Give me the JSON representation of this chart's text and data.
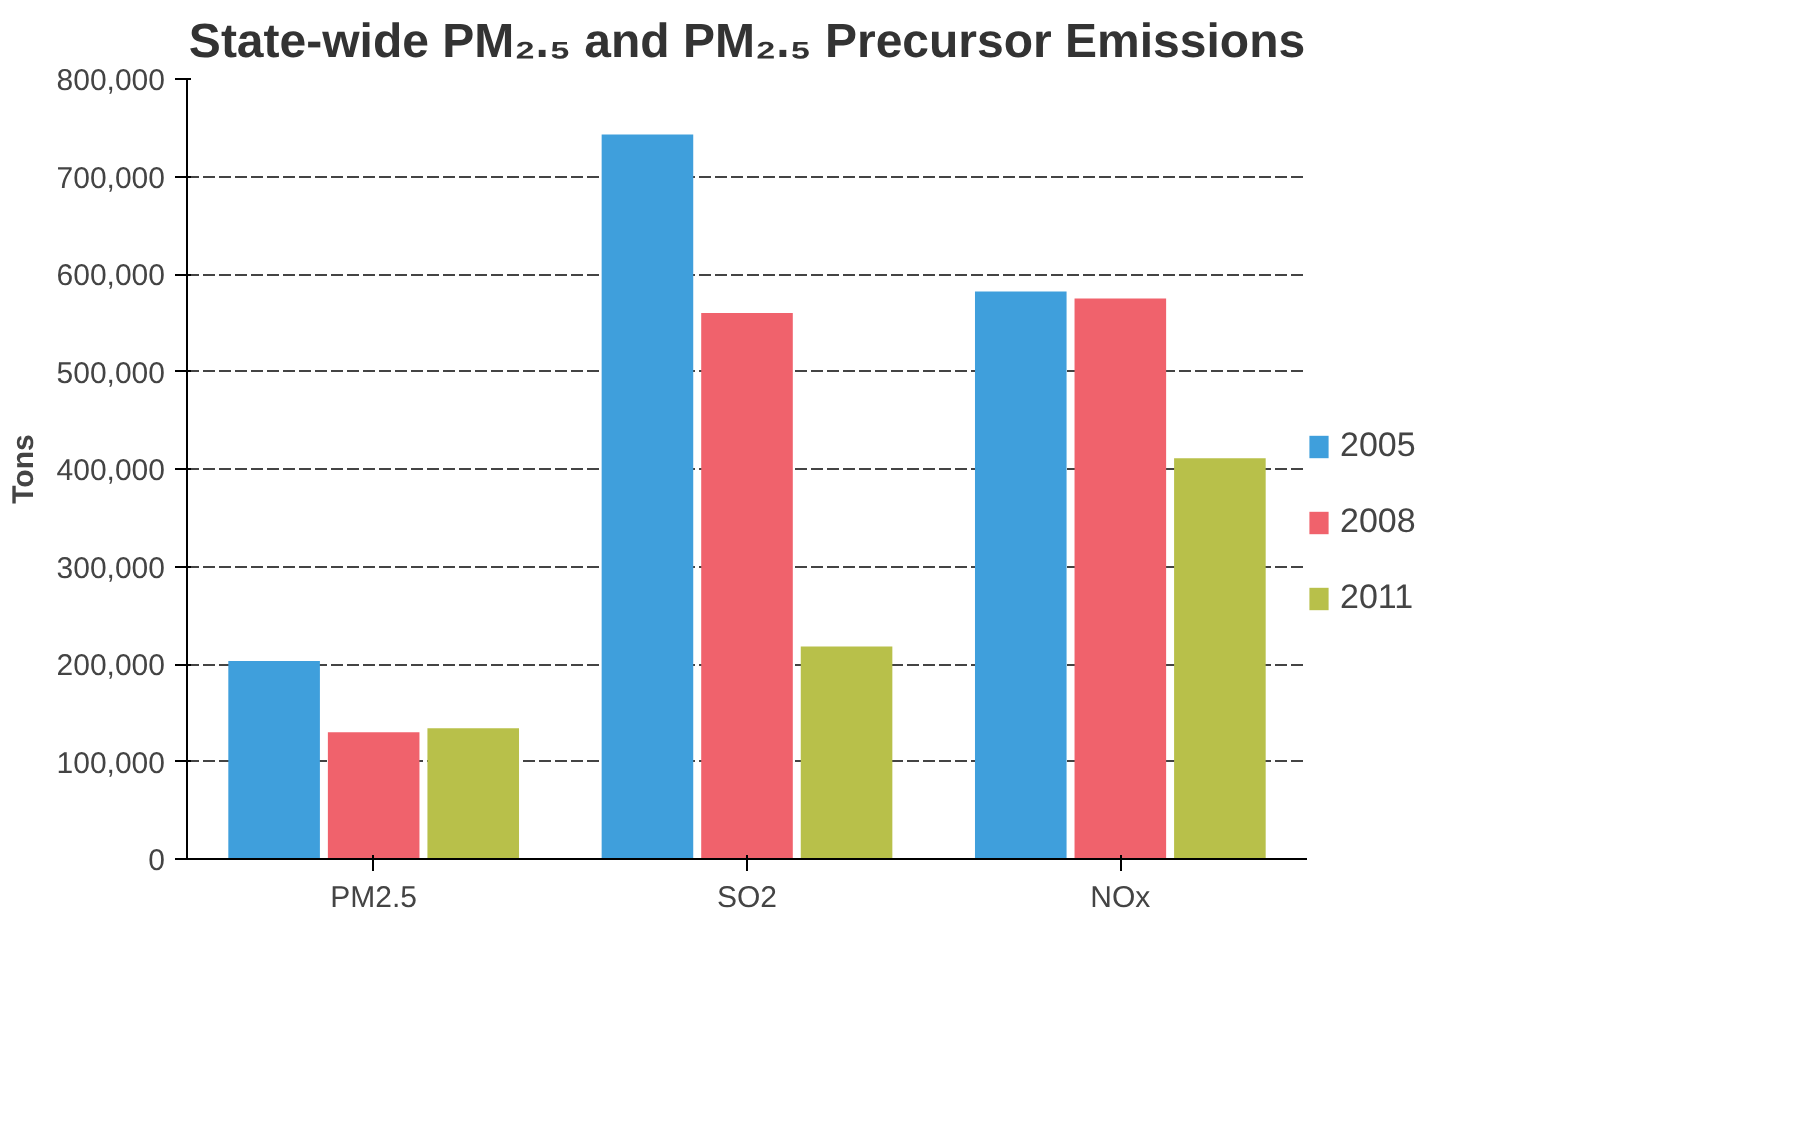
{
  "chart_data": {
    "type": "bar",
    "title": "State-wide PM₂.₅ and PM₂.₅ Precursor Emissions",
    "ylabel": "Tons",
    "categories": [
      "PM2.5",
      "SO2",
      "NOx"
    ],
    "series": [
      {
        "name": "2005",
        "color": "#3f9fdc",
        "values": [
          203000,
          743000,
          582000
        ]
      },
      {
        "name": "2008",
        "color": "#f0626c",
        "values": [
          130000,
          560000,
          575000
        ]
      },
      {
        "name": "2011",
        "color": "#b8c04a",
        "values": [
          134000,
          218000,
          411000
        ]
      }
    ],
    "ylim": [
      0,
      800000
    ],
    "yticks": [
      {
        "value": 0,
        "label": "0"
      },
      {
        "value": 100000,
        "label": "100,000"
      },
      {
        "value": 200000,
        "label": "200,000"
      },
      {
        "value": 300000,
        "label": "300,000"
      },
      {
        "value": 400000,
        "label": "400,000"
      },
      {
        "value": 500000,
        "label": "500,000"
      },
      {
        "value": 600000,
        "label": "600,000"
      },
      {
        "value": 700000,
        "label": "700,000"
      },
      {
        "value": 800000,
        "label": "800,000"
      }
    ],
    "grid": "y",
    "legend": "right"
  }
}
